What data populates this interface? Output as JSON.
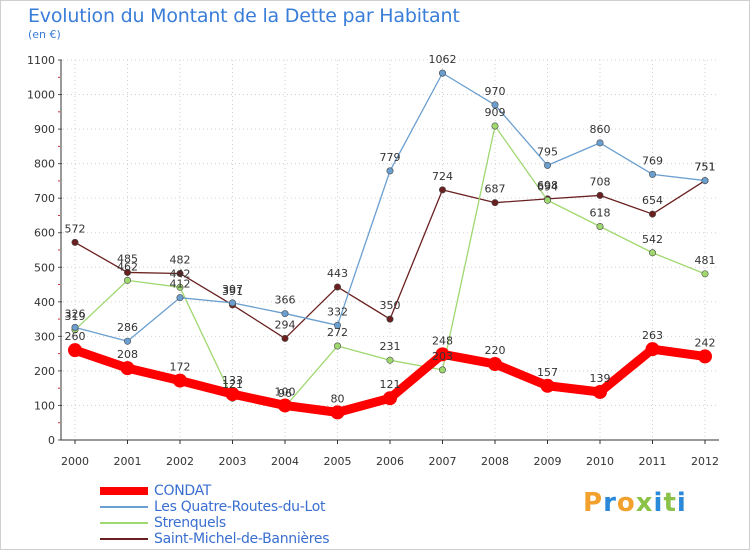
{
  "title": "Evolution du Montant de la Dette par Habitant",
  "subtitle": "(en €)",
  "chart_data": {
    "type": "line",
    "title": "Evolution du Montant de la Dette par Habitant",
    "subtitle": "(en €)",
    "x": [
      "2000",
      "2001",
      "2002",
      "2003",
      "2004",
      "2005",
      "2006",
      "2007",
      "2008",
      "2009",
      "2010",
      "2011",
      "2012"
    ],
    "ylim": [
      0,
      1100
    ],
    "yticks": [
      0,
      100,
      200,
      300,
      400,
      500,
      600,
      700,
      800,
      900,
      1000,
      1100
    ],
    "grid": true,
    "legend_position": "bottom-left",
    "series": [
      {
        "name": "CONDAT",
        "color": "#ff0000",
        "values": [
          260,
          208,
          172,
          133,
          100,
          80,
          121,
          248,
          220,
          157,
          139,
          263,
          242
        ],
        "labels": [
          "260",
          "208",
          "172",
          "133",
          "100",
          "80",
          "121",
          "248",
          "220",
          "157",
          "139",
          "263",
          "242"
        ]
      },
      {
        "name": "Les Quatre-Routes-du-Lot",
        "color": "#6a9fd0",
        "values": [
          326,
          286,
          412,
          397,
          366,
          332,
          779,
          1062,
          970,
          795,
          860,
          769,
          751
        ],
        "labels": [
          "326",
          "286",
          "412",
          "397",
          "366",
          "332",
          "779",
          "1062",
          "970",
          "795",
          "860",
          "769",
          "751"
        ]
      },
      {
        "name": "Strenquels",
        "color": "#a0d870",
        "values": [
          319,
          462,
          442,
          121,
          96,
          272,
          231,
          203,
          909,
          694,
          618,
          542,
          481
        ],
        "labels": [
          "319",
          "462",
          "442",
          "121",
          "96",
          "272",
          "231",
          "203",
          "909",
          "694",
          "618",
          "542",
          "481"
        ]
      },
      {
        "name": "Saint-Michel-de-Bannières",
        "color": "#6a2020",
        "values": [
          572,
          485,
          482,
          391,
          294,
          443,
          350,
          724,
          687,
          698,
          708,
          654,
          751
        ],
        "labels": [
          "572",
          "485",
          "482",
          "391",
          "294",
          "443",
          "350",
          "724",
          "687",
          "698",
          "708",
          "654",
          "751"
        ]
      }
    ]
  },
  "logo": {
    "letters": [
      "P",
      "r",
      "o",
      "x",
      "i",
      "t",
      "i"
    ],
    "colors": [
      "#f2a12c",
      "#2a89d8",
      "#f2a12c",
      "#8bc34a",
      "#2a89d8",
      "#8bc34a",
      "#2a89d8"
    ]
  }
}
